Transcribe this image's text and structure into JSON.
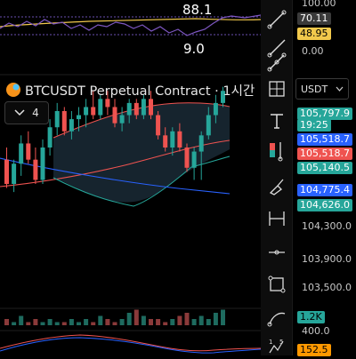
{
  "top_indicator": {
    "value_high": "88.1",
    "value_low": "9.0"
  },
  "symbol": {
    "name": "BTCUSDT Perpetual Contract · 1시간",
    "collapse_count": "4"
  },
  "axis": {
    "symbol_select": "USDT",
    "labels_top": [
      "100.00",
      "0.00"
    ],
    "price_labels": [
      "104,300.0",
      "103,900.0",
      "103,500.0"
    ],
    "bottom_label": "400.0",
    "tags": [
      {
        "text": "70.11",
        "bg": "#3a3a3a",
        "fg": "#ffffff"
      },
      {
        "text": "48.95",
        "bg": "#f2c94c",
        "fg": "#000000"
      },
      {
        "text": "105,797.9",
        "bg": "#26a69a",
        "fg": "#ffffff"
      },
      {
        "text": "19:25",
        "bg": "#26a69a",
        "fg": "#ffffff"
      },
      {
        "text": "105,518.7",
        "bg": "#2962ff",
        "fg": "#ffffff"
      },
      {
        "text": "105,518.7",
        "bg": "#ef5350",
        "fg": "#ffffff"
      },
      {
        "text": "105,140.5",
        "bg": "#26a69a",
        "fg": "#ffffff"
      },
      {
        "text": "104,775.4",
        "bg": "#2962ff",
        "fg": "#ffffff"
      },
      {
        "text": "104,626.0",
        "bg": "#26a69a",
        "fg": "#ffffff"
      },
      {
        "text": "1.2K",
        "bg": "#26a69a",
        "fg": "#000000"
      },
      {
        "text": "152.5",
        "bg": "#ff9800",
        "fg": "#000000"
      }
    ]
  },
  "toolbar": {
    "tools": [
      "trend-line-icon",
      "ray-icon",
      "info-line-icon",
      "fib-grid-icon",
      "text-tool-icon",
      "long-position-icon",
      "brush-icon",
      "price-range-icon",
      "horizontal-line-icon",
      "rectangle-icon",
      "curve-icon",
      "elliott-wave-icon"
    ]
  },
  "chart_data": {
    "type": "candlestick",
    "candles": [
      {
        "o": 104950,
        "h": 105100,
        "l": 104600,
        "c": 104650
      },
      {
        "o": 104650,
        "h": 104950,
        "l": 104550,
        "c": 104900
      },
      {
        "o": 104900,
        "h": 105250,
        "l": 104750,
        "c": 105150
      },
      {
        "o": 105150,
        "h": 105300,
        "l": 104900,
        "c": 104950
      },
      {
        "o": 104950,
        "h": 105100,
        "l": 104650,
        "c": 104700
      },
      {
        "o": 104700,
        "h": 105200,
        "l": 104650,
        "c": 105100
      },
      {
        "o": 105100,
        "h": 105450,
        "l": 105000,
        "c": 105350
      },
      {
        "o": 105350,
        "h": 105650,
        "l": 105250,
        "c": 105550
      },
      {
        "o": 105550,
        "h": 105600,
        "l": 105250,
        "c": 105300
      },
      {
        "o": 105300,
        "h": 105550,
        "l": 105200,
        "c": 105450
      },
      {
        "o": 105450,
        "h": 105600,
        "l": 105300,
        "c": 105500
      },
      {
        "o": 105500,
        "h": 105700,
        "l": 105350,
        "c": 105600
      },
      {
        "o": 105600,
        "h": 105800,
        "l": 105450,
        "c": 105500
      },
      {
        "o": 105500,
        "h": 105750,
        "l": 105450,
        "c": 105700
      },
      {
        "o": 105700,
        "h": 105800,
        "l": 105500,
        "c": 105600
      },
      {
        "o": 105600,
        "h": 105700,
        "l": 105350,
        "c": 105400
      },
      {
        "o": 105400,
        "h": 105600,
        "l": 105300,
        "c": 105500
      },
      {
        "o": 105500,
        "h": 105700,
        "l": 105400,
        "c": 105650
      },
      {
        "o": 105650,
        "h": 105700,
        "l": 105450,
        "c": 105500
      },
      {
        "o": 105500,
        "h": 105750,
        "l": 105450,
        "c": 105700
      },
      {
        "o": 105700,
        "h": 105800,
        "l": 105450,
        "c": 105500
      },
      {
        "o": 105500,
        "h": 105550,
        "l": 105200,
        "c": 105250
      },
      {
        "o": 105250,
        "h": 105350,
        "l": 105050,
        "c": 105100
      },
      {
        "o": 105100,
        "h": 105350,
        "l": 105000,
        "c": 105300
      },
      {
        "o": 105300,
        "h": 105400,
        "l": 105050,
        "c": 105100
      },
      {
        "o": 105100,
        "h": 105150,
        "l": 104800,
        "c": 104850
      },
      {
        "o": 104850,
        "h": 105100,
        "l": 104700,
        "c": 105050
      },
      {
        "o": 105050,
        "h": 105300,
        "l": 104700,
        "c": 105250
      },
      {
        "o": 105250,
        "h": 105600,
        "l": 105200,
        "c": 105500
      },
      {
        "o": 105500,
        "h": 105750,
        "l": 105400,
        "c": 105650
      },
      {
        "o": 105650,
        "h": 105850,
        "l": 105600,
        "c": 105800
      }
    ],
    "volumes": [
      2,
      1,
      3,
      1,
      2,
      1,
      2,
      1,
      1,
      2,
      1,
      2,
      1,
      3,
      2,
      1,
      2,
      4,
      5,
      3,
      2,
      2,
      1,
      2,
      3,
      4,
      2,
      3,
      2,
      4,
      5
    ],
    "y_range": [
      103300,
      106000
    ]
  }
}
